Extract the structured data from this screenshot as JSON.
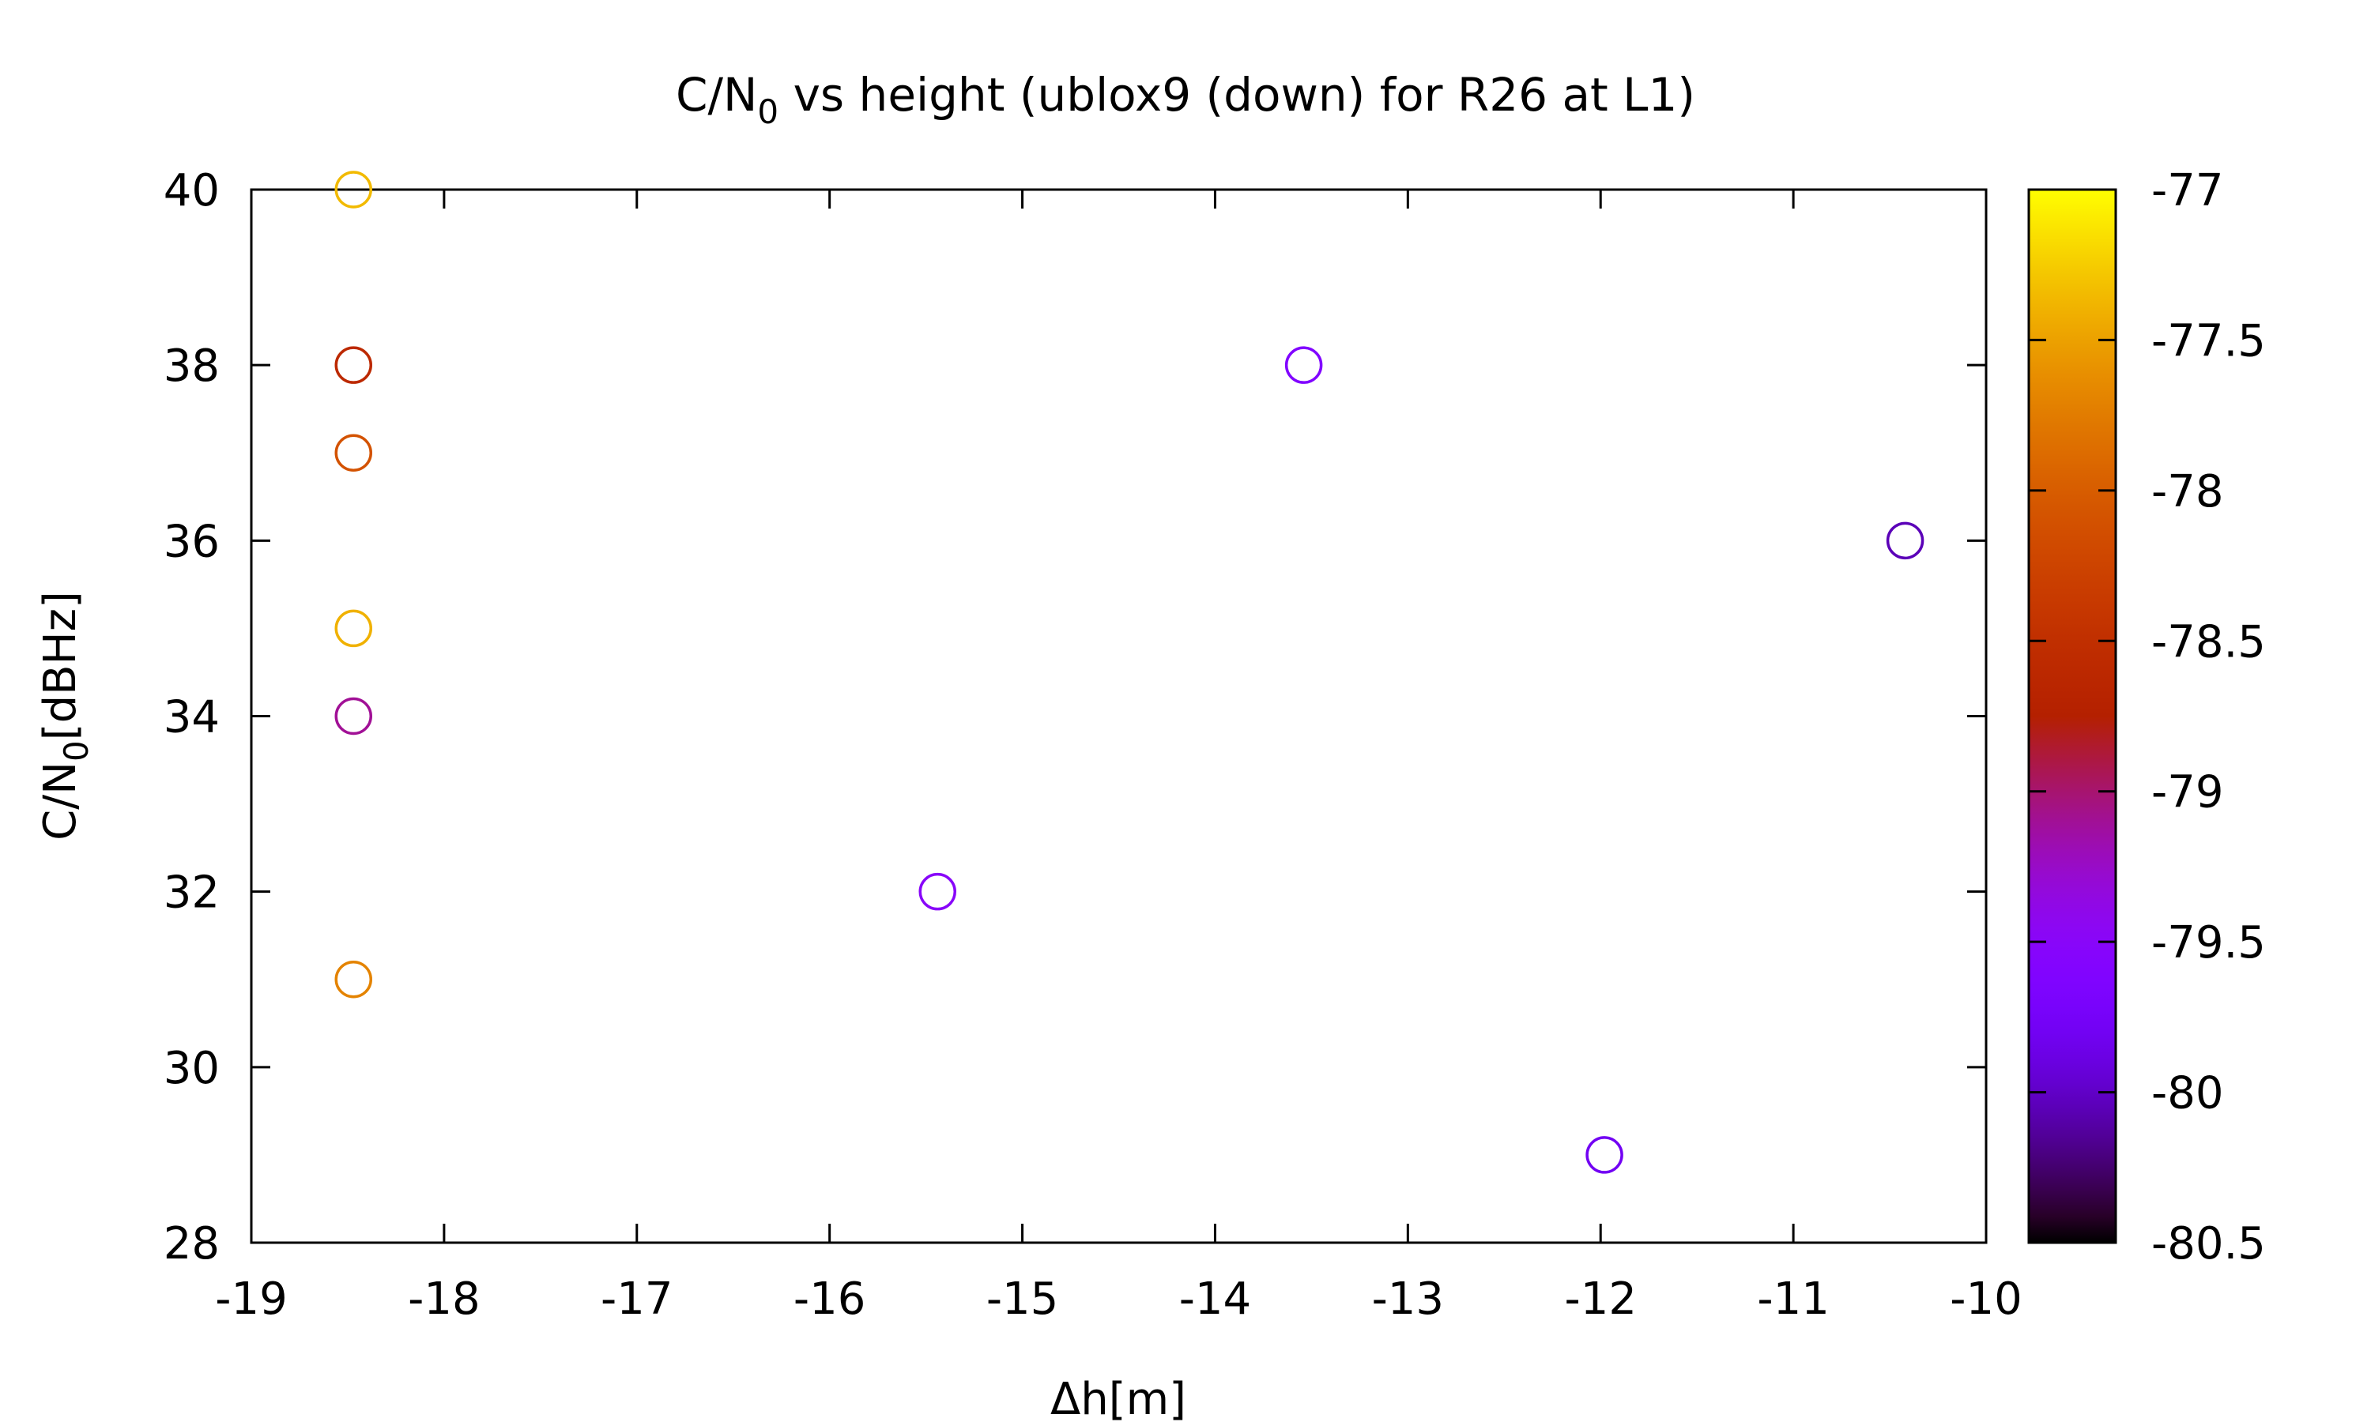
{
  "chart_data": {
    "type": "scatter",
    "title_parts": [
      "C/N",
      "0",
      " vs height (ublox9 (down) for R26 at L1)"
    ],
    "xlabel": "Δh[m]",
    "ylabel_parts": [
      "C/N",
      "0",
      "[dBHz]"
    ],
    "xlim": [
      -19,
      -10
    ],
    "ylim": [
      28,
      40
    ],
    "x_ticks": [
      -19,
      -18,
      -17,
      -16,
      -15,
      -14,
      -13,
      -12,
      -11,
      -10
    ],
    "y_ticks": [
      28,
      30,
      32,
      34,
      36,
      38,
      40
    ],
    "colorbar": {
      "range": [
        -80.5,
        -77
      ],
      "ticks": [
        -77,
        -77.5,
        -78,
        -78.5,
        -79,
        -79.5,
        -80,
        -80.5
      ],
      "palette": "gnuplot"
    },
    "points": [
      {
        "x": -18.47,
        "y": 40,
        "c": -77.35
      },
      {
        "x": -18.47,
        "y": 38,
        "c": -78.6
      },
      {
        "x": -18.47,
        "y": 37,
        "c": -78.1
      },
      {
        "x": -18.47,
        "y": 35,
        "c": -77.4
      },
      {
        "x": -18.47,
        "y": 34,
        "c": -79.1
      },
      {
        "x": -18.47,
        "y": 31,
        "c": -77.7
      },
      {
        "x": -15.44,
        "y": 32,
        "c": -79.5
      },
      {
        "x": -13.54,
        "y": 38,
        "c": -79.6
      },
      {
        "x": -11.98,
        "y": 29,
        "c": -79.8
      },
      {
        "x": -10.42,
        "y": 36,
        "c": -80.05
      }
    ]
  }
}
